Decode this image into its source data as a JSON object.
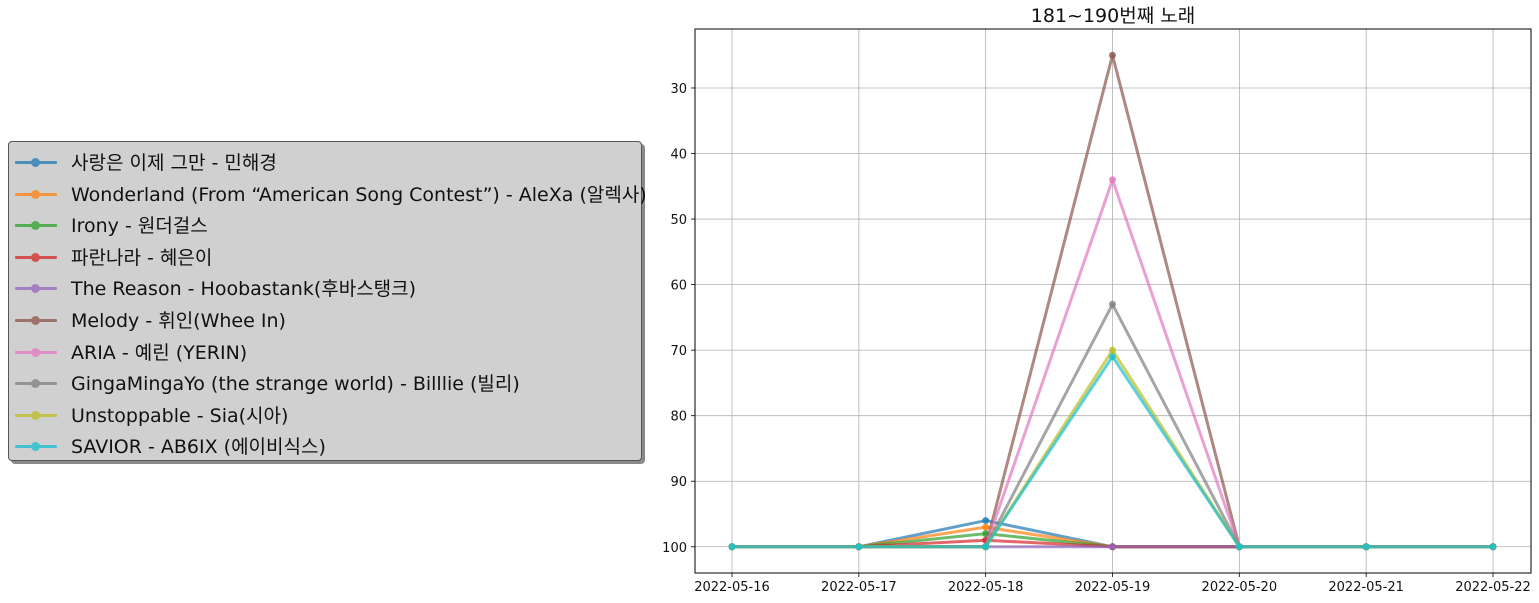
{
  "chart_data": {
    "type": "line",
    "title": "181~190번째 노래",
    "xlabel": "",
    "ylabel": "",
    "x": [
      "2022-05-16",
      "2022-05-17",
      "2022-05-18",
      "2022-05-19",
      "2022-05-20",
      "2022-05-21",
      "2022-05-22"
    ],
    "y_ticks": [
      30,
      40,
      50,
      60,
      70,
      80,
      90,
      100
    ],
    "ylim": [
      104,
      21
    ],
    "y_inverted": true,
    "grid": true,
    "legend_placement": "left-outside",
    "series": [
      {
        "name": "사랑은 이제 그만 - 민해경",
        "color": "#1f77b4",
        "values": [
          100,
          100,
          96,
          100,
          100,
          100,
          100
        ]
      },
      {
        "name": "Wonderland (From “American Song Contest”) - AleXa (알렉사)",
        "color": "#ff7f0e",
        "values": [
          100,
          100,
          97,
          100,
          100,
          100,
          100
        ]
      },
      {
        "name": "Irony - 원더걸스",
        "color": "#2ca02c",
        "values": [
          100,
          100,
          98,
          100,
          100,
          100,
          100
        ]
      },
      {
        "name": "파란나라 - 혜은이",
        "color": "#d62728",
        "values": [
          100,
          100,
          99,
          100,
          100,
          100,
          100
        ]
      },
      {
        "name": "The Reason - Hoobastank(후바스탱크)",
        "color": "#9467bd",
        "values": [
          100,
          100,
          100,
          100,
          100,
          100,
          100
        ]
      },
      {
        "name": "Melody - 휘인(Whee In)",
        "color": "#8c564b",
        "values": [
          100,
          100,
          100,
          25,
          100,
          100,
          100
        ]
      },
      {
        "name": "ARIA - 예린 (YERIN)",
        "color": "#e377c2",
        "values": [
          100,
          100,
          100,
          44,
          100,
          100,
          100
        ]
      },
      {
        "name": "GingaMingaYo (the strange world) - Billlie (빌리)",
        "color": "#7f7f7f",
        "values": [
          100,
          100,
          100,
          63,
          100,
          100,
          100
        ]
      },
      {
        "name": "Unstoppable - Sia(시아)",
        "color": "#bcbd22",
        "values": [
          100,
          100,
          100,
          70,
          100,
          100,
          100
        ]
      },
      {
        "name": "SAVIOR - AB6IX (에이비식스)",
        "color": "#17becf",
        "values": [
          100,
          100,
          100,
          71,
          100,
          100,
          100
        ]
      }
    ]
  }
}
